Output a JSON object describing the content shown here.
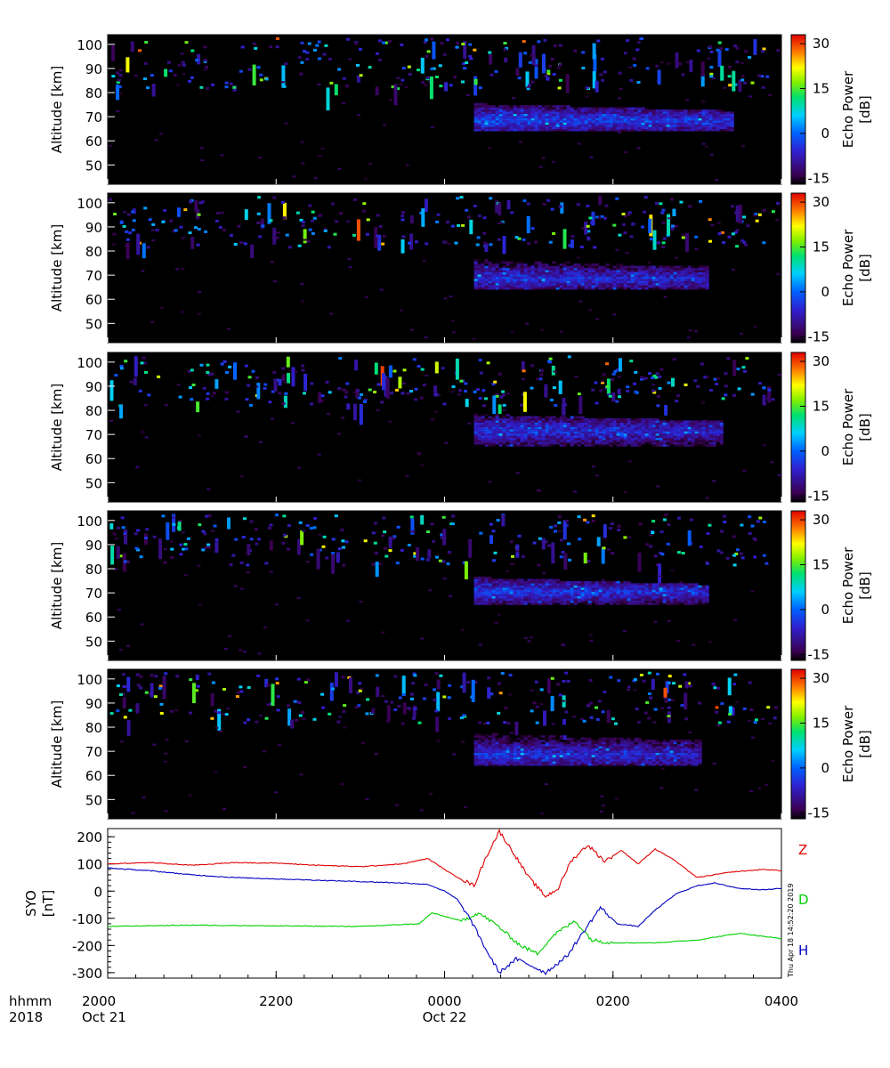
{
  "figure": {
    "time_axis_title_line1": "hhmm",
    "time_axis_title_line2": "2018",
    "time_ticks": [
      {
        "label": "2000",
        "date_label": "Oct 21",
        "hours": 0
      },
      {
        "label": "2200",
        "date_label": "",
        "hours": 2
      },
      {
        "label": "0000",
        "date_label": "Oct 22",
        "hours": 4
      },
      {
        "label": "0200",
        "date_label": "",
        "hours": 6
      },
      {
        "label": "0400",
        "date_label": "",
        "hours": 8
      }
    ],
    "timestamp": "Thu Apr 18 14:52:20 2019"
  },
  "chart_data": [
    {
      "type": "heatmap",
      "panel": 1,
      "ylabel": "Altitude [km]",
      "yticks": [
        50,
        60,
        70,
        80,
        90,
        100
      ],
      "ylim": [
        42,
        104
      ],
      "colorbar_label_line1": "Echo Power",
      "colorbar_label_line2": "[dB]",
      "colorbar_ticks": [
        30,
        15,
        0,
        -15
      ],
      "clim": [
        -17,
        33
      ],
      "echo_layers": [
        {
          "t_start": 4.35,
          "t_end": 7.4,
          "alt_low": 64,
          "alt_high": 75,
          "peak_alt": 68,
          "peak_db": 2
        }
      ]
    },
    {
      "type": "heatmap",
      "panel": 2,
      "ylabel": "Altitude [km]",
      "yticks": [
        50,
        60,
        70,
        80,
        90,
        100
      ],
      "ylim": [
        42,
        104
      ],
      "colorbar_label_line1": "Echo Power",
      "colorbar_label_line2": "[dB]",
      "colorbar_ticks": [
        30,
        15,
        0,
        -15
      ],
      "clim": [
        -17,
        33
      ],
      "echo_layers": [
        {
          "t_start": 4.35,
          "t_end": 7.1,
          "alt_low": 64,
          "alt_high": 76,
          "peak_alt": 68,
          "peak_db": 0
        }
      ]
    },
    {
      "type": "heatmap",
      "panel": 3,
      "ylabel": "Altitude [km]",
      "yticks": [
        50,
        60,
        70,
        80,
        90,
        100
      ],
      "ylim": [
        42,
        104
      ],
      "colorbar_label_line1": "Echo Power",
      "colorbar_label_line2": "[dB]",
      "colorbar_ticks": [
        30,
        15,
        0,
        -15
      ],
      "clim": [
        -17,
        33
      ],
      "echo_layers": [
        {
          "t_start": 4.35,
          "t_end": 7.3,
          "alt_low": 65,
          "alt_high": 78,
          "peak_alt": 71,
          "peak_db": 0
        }
      ]
    },
    {
      "type": "heatmap",
      "panel": 4,
      "ylabel": "Altitude [km]",
      "yticks": [
        50,
        60,
        70,
        80,
        90,
        100
      ],
      "ylim": [
        42,
        104
      ],
      "colorbar_label_line1": "Echo Power",
      "colorbar_label_line2": "[dB]",
      "colorbar_ticks": [
        30,
        15,
        0,
        -15
      ],
      "clim": [
        -17,
        33
      ],
      "echo_layers": [
        {
          "t_start": 4.35,
          "t_end": 7.1,
          "alt_low": 65,
          "alt_high": 76,
          "peak_alt": 70,
          "peak_db": 1
        }
      ]
    },
    {
      "type": "heatmap",
      "panel": 5,
      "ylabel": "Altitude [km]",
      "yticks": [
        50,
        60,
        70,
        80,
        90,
        100
      ],
      "ylim": [
        42,
        104
      ],
      "colorbar_label_line1": "Echo Power",
      "colorbar_label_line2": "[dB]",
      "colorbar_ticks": [
        30,
        15,
        0,
        -15
      ],
      "clim": [
        -17,
        33
      ],
      "echo_layers": [
        {
          "t_start": 4.35,
          "t_end": 7.05,
          "alt_low": 64,
          "alt_high": 77,
          "peak_alt": 68,
          "peak_db": 0
        }
      ]
    },
    {
      "type": "line",
      "panel": "magnetometer",
      "ylabel_line1": "SYO",
      "ylabel_line2": "[nT]",
      "yticks": [
        200,
        100,
        0,
        -100,
        -200,
        -300
      ],
      "ylim": [
        -320,
        230
      ],
      "series": [
        {
          "name": "Z",
          "color": "#e00000",
          "points": [
            [
              0,
              100
            ],
            [
              0.5,
              105
            ],
            [
              1,
              95
            ],
            [
              1.5,
              105
            ],
            [
              2,
              103
            ],
            [
              2.5,
              95
            ],
            [
              3,
              90
            ],
            [
              3.5,
              100
            ],
            [
              3.8,
              120
            ],
            [
              4.1,
              60
            ],
            [
              4.35,
              20
            ],
            [
              4.5,
              130
            ],
            [
              4.65,
              220
            ],
            [
              4.8,
              150
            ],
            [
              5.0,
              50
            ],
            [
              5.2,
              -20
            ],
            [
              5.35,
              10
            ],
            [
              5.5,
              110
            ],
            [
              5.7,
              170
            ],
            [
              5.9,
              110
            ],
            [
              6.1,
              150
            ],
            [
              6.3,
              100
            ],
            [
              6.5,
              155
            ],
            [
              6.7,
              120
            ],
            [
              7.0,
              50
            ],
            [
              7.4,
              70
            ],
            [
              7.8,
              80
            ],
            [
              8.0,
              75
            ]
          ]
        },
        {
          "name": "D",
          "color": "#00d000",
          "points": [
            [
              0,
              -130
            ],
            [
              1,
              -125
            ],
            [
              2,
              -128
            ],
            [
              3,
              -130
            ],
            [
              3.7,
              -120
            ],
            [
              3.85,
              -80
            ],
            [
              4.2,
              -110
            ],
            [
              4.4,
              -80
            ],
            [
              4.6,
              -120
            ],
            [
              4.9,
              -200
            ],
            [
              5.1,
              -230
            ],
            [
              5.3,
              -160
            ],
            [
              5.55,
              -110
            ],
            [
              5.75,
              -180
            ],
            [
              6.0,
              -190
            ],
            [
              6.5,
              -190
            ],
            [
              7.0,
              -180
            ],
            [
              7.5,
              -155
            ],
            [
              8.0,
              -175
            ]
          ]
        },
        {
          "name": "H",
          "color": "#0000c0",
          "points": [
            [
              0,
              85
            ],
            [
              0.5,
              75
            ],
            [
              1,
              60
            ],
            [
              1.5,
              50
            ],
            [
              2,
              45
            ],
            [
              2.5,
              40
            ],
            [
              3,
              35
            ],
            [
              3.5,
              30
            ],
            [
              3.8,
              25
            ],
            [
              4.0,
              0
            ],
            [
              4.15,
              -30
            ],
            [
              4.3,
              -100
            ],
            [
              4.5,
              -220
            ],
            [
              4.65,
              -300
            ],
            [
              4.85,
              -250
            ],
            [
              5.0,
              -270
            ],
            [
              5.2,
              -300
            ],
            [
              5.45,
              -240
            ],
            [
              5.65,
              -150
            ],
            [
              5.85,
              -60
            ],
            [
              6.05,
              -120
            ],
            [
              6.3,
              -130
            ],
            [
              6.5,
              -70
            ],
            [
              6.75,
              -10
            ],
            [
              7.0,
              20
            ],
            [
              7.2,
              30
            ],
            [
              7.5,
              10
            ],
            [
              7.8,
              5
            ],
            [
              8.0,
              10
            ]
          ]
        }
      ]
    }
  ]
}
